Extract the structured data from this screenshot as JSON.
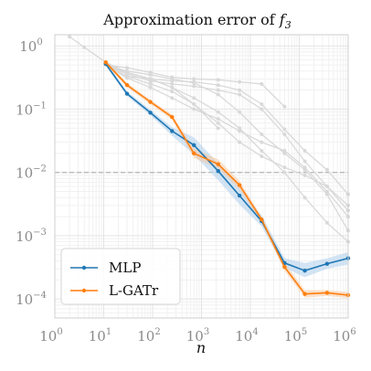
{
  "chart_data": {
    "type": "line",
    "title": "Approximation error of",
    "title_math": "f",
    "title_math_sub": "3",
    "xlabel": "n",
    "ylabel": "",
    "x_scale": "log",
    "y_scale": "log",
    "xlim": [
      1,
      1000000
    ],
    "ylim": [
      5e-05,
      1.5
    ],
    "x_ticks": [
      {
        "value": 1,
        "base": "10",
        "exp": "0"
      },
      {
        "value": 10,
        "base": "10",
        "exp": "1"
      },
      {
        "value": 100,
        "base": "10",
        "exp": "2"
      },
      {
        "value": 1000,
        "base": "10",
        "exp": "3"
      },
      {
        "value": 10000,
        "base": "10",
        "exp": "4"
      },
      {
        "value": 100000,
        "base": "10",
        "exp": "5"
      },
      {
        "value": 1000000,
        "base": "10",
        "exp": "6"
      }
    ],
    "y_ticks": [
      {
        "value": 1,
        "base": "10",
        "exp": "0"
      },
      {
        "value": 0.1,
        "base": "10",
        "exp": "−1"
      },
      {
        "value": 0.01,
        "base": "10",
        "exp": "−2"
      },
      {
        "value": 0.001,
        "base": "10",
        "exp": "−3"
      },
      {
        "value": 0.0001,
        "base": "10",
        "exp": "−4"
      }
    ],
    "grid": true,
    "legend_position": "bottom-left",
    "reference_line": {
      "y": 0.01,
      "style": "dashed",
      "color": "#bbbbbb"
    },
    "series": [
      {
        "name": "MLP",
        "color": "#1f77b4",
        "band_color": "#aed0ec",
        "x": [
          11,
          30,
          90,
          250,
          700,
          2200,
          6000,
          17000,
          50000,
          130000,
          370000,
          1000000
        ],
        "y": [
          0.52,
          0.175,
          0.088,
          0.045,
          0.027,
          0.0105,
          0.0043,
          0.0017,
          0.00037,
          0.00028,
          0.00036,
          0.00044
        ],
        "lower": [
          0.48,
          0.16,
          0.08,
          0.038,
          0.019,
          0.0075,
          0.0031,
          0.0014,
          0.00031,
          0.00022,
          0.0003,
          0.00035
        ],
        "upper": [
          0.56,
          0.19,
          0.097,
          0.052,
          0.036,
          0.014,
          0.0058,
          0.0021,
          0.00044,
          0.00037,
          0.00044,
          0.00055
        ]
      },
      {
        "name": "L-GATr",
        "color": "#ff7f0e",
        "band_color": "#f7c9a1",
        "x": [
          11,
          30,
          90,
          250,
          700,
          2200,
          6000,
          17000,
          50000,
          130000,
          370000,
          1000000
        ],
        "y": [
          0.55,
          0.24,
          0.13,
          0.075,
          0.02,
          0.0135,
          0.0063,
          0.0018,
          0.00032,
          0.00012,
          0.000125,
          0.000115
        ],
        "lower": [
          0.51,
          0.22,
          0.12,
          0.068,
          0.017,
          0.0115,
          0.0054,
          0.0016,
          0.00028,
          0.000105,
          0.000112,
          0.000103
        ],
        "upper": [
          0.59,
          0.26,
          0.14,
          0.082,
          0.024,
          0.016,
          0.0073,
          0.002,
          0.00037,
          0.000138,
          0.000138,
          0.000128
        ]
      }
    ],
    "background_series": [
      {
        "color": "#d9d9d9",
        "x": [
          2,
          4,
          11,
          30,
          90,
          250,
          700,
          2200
        ],
        "y": [
          1.4,
          0.95,
          0.55,
          0.38,
          0.3,
          0.22,
          0.12,
          0.05
        ]
      },
      {
        "color": "#d9d9d9",
        "x": [
          11,
          30,
          90,
          250,
          700,
          2200,
          6000,
          17000,
          50000,
          130000,
          370000,
          1000000
        ],
        "y": [
          0.5,
          0.33,
          0.3,
          0.28,
          0.27,
          0.24,
          0.2,
          0.12,
          0.048,
          0.022,
          0.011,
          0.0045
        ]
      },
      {
        "color": "#d9d9d9",
        "x": [
          11,
          30,
          90,
          250,
          700,
          2200,
          6000,
          17000,
          50000,
          130000,
          370000,
          1000000
        ],
        "y": [
          0.5,
          0.36,
          0.28,
          0.25,
          0.23,
          0.2,
          0.17,
          0.1,
          0.04,
          0.015,
          0.006,
          0.0025
        ]
      },
      {
        "color": "#d9d9d9",
        "x": [
          11,
          30,
          90,
          250,
          700,
          2200,
          6000,
          17000,
          50000,
          130000,
          370000,
          1000000
        ],
        "y": [
          0.5,
          0.4,
          0.35,
          0.3,
          0.26,
          0.17,
          0.09,
          0.04,
          0.02,
          0.011,
          0.0045,
          0.0012
        ]
      },
      {
        "color": "#d9d9d9",
        "x": [
          11,
          30,
          90,
          250,
          700,
          2200,
          6000,
          17000,
          50000,
          130000,
          370000,
          1000000
        ],
        "y": [
          0.5,
          0.38,
          0.3,
          0.22,
          0.15,
          0.09,
          0.05,
          0.022,
          0.01,
          0.004,
          0.0016,
          0.0008
        ]
      },
      {
        "color": "#d9d9d9",
        "x": [
          11,
          30,
          90,
          250,
          700,
          2200,
          6000,
          17000,
          50000,
          130000,
          370000,
          1000000
        ],
        "y": [
          0.5,
          0.33,
          0.25,
          0.19,
          0.12,
          0.06,
          0.03,
          0.018,
          0.012,
          0.009,
          0.006,
          0.003
        ]
      },
      {
        "color": "#d9d9d9",
        "x": [
          11,
          30,
          90,
          250,
          700,
          2200,
          6000,
          17000,
          50000,
          130000,
          370000,
          1000000
        ],
        "y": [
          0.5,
          0.31,
          0.22,
          0.15,
          0.1,
          0.07,
          0.045,
          0.03,
          0.022,
          0.012,
          0.005,
          0.002
        ]
      },
      {
        "color": "#d9d9d9",
        "x": [
          11,
          30,
          90,
          250,
          700,
          2200,
          6000,
          17000,
          50000
        ],
        "y": [
          0.5,
          0.45,
          0.38,
          0.32,
          0.3,
          0.29,
          0.27,
          0.25,
          0.11
        ]
      }
    ]
  }
}
